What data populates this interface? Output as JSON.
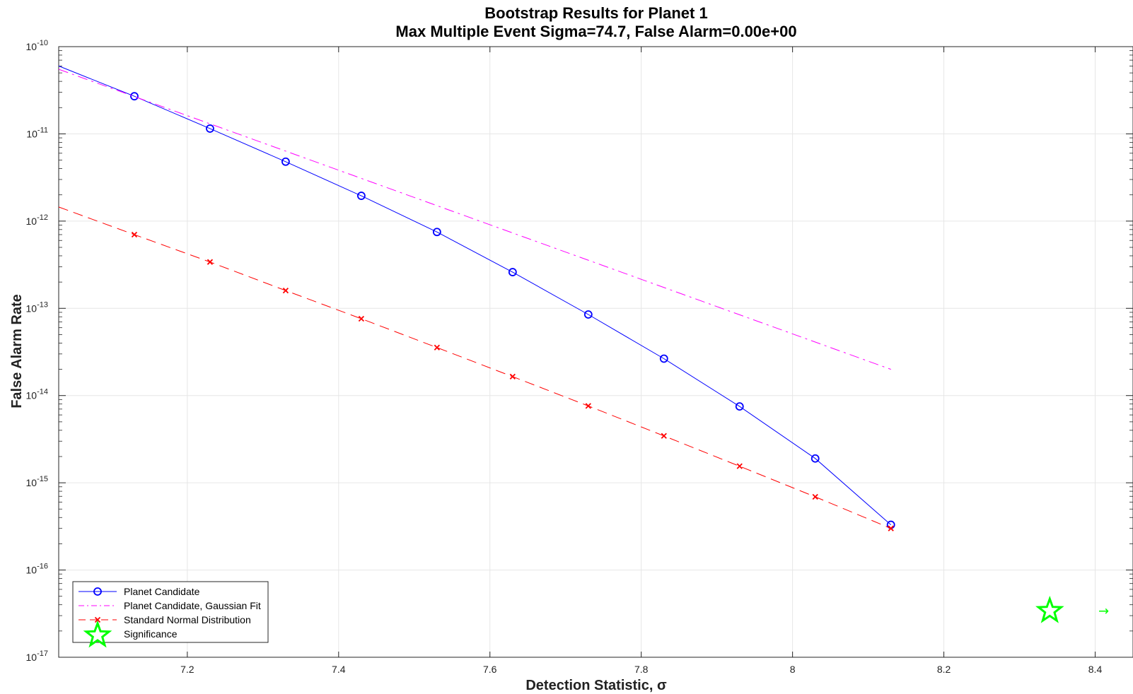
{
  "chart_data": {
    "type": "line",
    "title": "Bootstrap Results for Planet 1",
    "subtitle": "Max Multiple Event Sigma=74.7, False Alarm=0.00e+00",
    "xlabel": "Detection Statistic, σ",
    "ylabel": "False Alarm Rate",
    "xlim": [
      7.03,
      8.45
    ],
    "ylim": [
      1e-17,
      1e-10
    ],
    "yscale": "log",
    "grid": true,
    "legend_position": "bottom-left",
    "x_ticks": [
      7.2,
      7.4,
      7.6,
      7.8,
      8.0,
      8.2,
      8.4
    ],
    "x_tick_labels": [
      "7.2",
      "7.4",
      "7.6",
      "7.8",
      "8",
      "8.2",
      "8.4"
    ],
    "y_tick_exponents": [
      "-10",
      "-11",
      "-12",
      "-13",
      "-14",
      "-15",
      "-16",
      "-17"
    ],
    "y_tick_base": "10",
    "series": [
      {
        "name": "Planet Candidate",
        "color": "#0000ff",
        "style": "solid",
        "marker": "circle",
        "x": [
          7.03,
          7.13,
          7.23,
          7.33,
          7.43,
          7.53,
          7.63,
          7.73,
          7.83,
          7.93,
          8.03,
          8.13
        ],
        "y": [
          6e-11,
          2.7e-11,
          1.15e-11,
          4.8e-12,
          1.95e-12,
          7.5e-13,
          2.6e-13,
          8.5e-14,
          2.65e-14,
          7.5e-15,
          1.9e-15,
          3.3e-16
        ],
        "marker_from_index": 1
      },
      {
        "name": "Planet Candidate, Gaussian Fit",
        "color": "#ff00ff",
        "style": "dashdot",
        "marker": "none",
        "x": [
          7.03,
          8.13
        ],
        "y": [
          5.5e-11,
          2e-14
        ]
      },
      {
        "name": "Standard Normal Distribution",
        "color": "#ff0000",
        "style": "dashed",
        "marker": "x",
        "x": [
          7.03,
          7.13,
          7.23,
          7.33,
          7.43,
          7.53,
          7.63,
          7.73,
          7.83,
          7.93,
          8.03,
          8.13
        ],
        "y": [
          1.45e-12,
          7e-13,
          3.4e-13,
          1.6e-13,
          7.6e-14,
          3.55e-14,
          1.65e-14,
          7.6e-15,
          3.45e-15,
          1.55e-15,
          6.9e-16,
          3e-16
        ],
        "marker_from_index": 1
      },
      {
        "name": "Significance",
        "color": "#00ff00",
        "style": "none",
        "marker": "star",
        "x": [
          8.34
        ],
        "y": [
          3.4e-17
        ]
      }
    ],
    "annotations": [
      {
        "text": "→",
        "x": 8.4,
        "y": 3.4e-17,
        "color": "#00ff00"
      }
    ]
  }
}
